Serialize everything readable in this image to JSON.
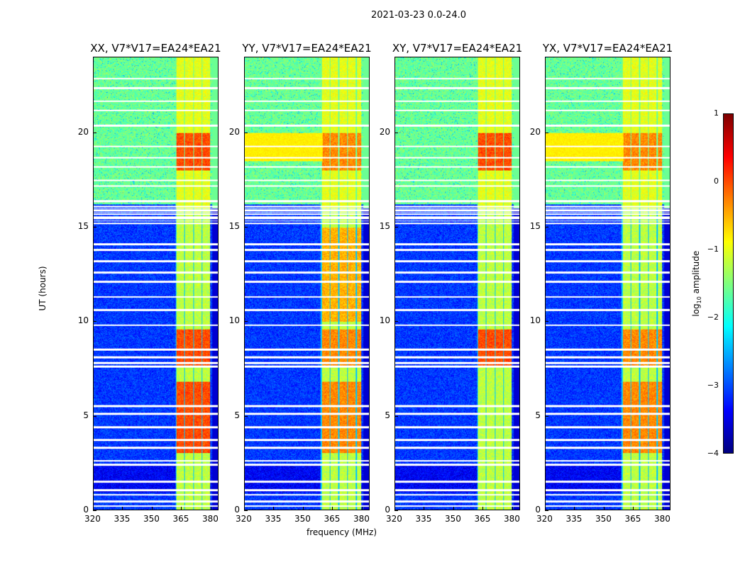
{
  "chart_data": {
    "type": "heatmap",
    "title": "2021-03-23 0.0-24.0",
    "xlabel": "frequency (MHz)",
    "ylabel": "UT (hours)",
    "xlim": [
      320,
      384
    ],
    "ylim": [
      0,
      24
    ],
    "xticks": [
      "320",
      "335",
      "350",
      "365",
      "380"
    ],
    "xtick_values": [
      320,
      335,
      350,
      365,
      380
    ],
    "yticks": [
      "0",
      "5",
      "10",
      "15",
      "20"
    ],
    "ytick_values": [
      0,
      5,
      10,
      15,
      20
    ],
    "panels": [
      {
        "title": "XX, V7*V17=EA24*EA21"
      },
      {
        "title": "YY, V7*V17=EA24*EA21"
      },
      {
        "title": "XY, V7*V17=EA24*EA21"
      },
      {
        "title": "YX, V7*V17=EA24*EA21"
      }
    ],
    "colorbar": {
      "label": "log10 amplitude",
      "label_main": "log",
      "label_sub": "10",
      "label_rest": " amplitude",
      "range": [
        -4,
        1
      ],
      "ticks": [
        "1",
        "0",
        "−1",
        "−2",
        "−3",
        "−4"
      ],
      "tick_values": [
        1,
        0,
        -1,
        -2,
        -3,
        -4
      ],
      "colormap": "jet"
    }
  }
}
